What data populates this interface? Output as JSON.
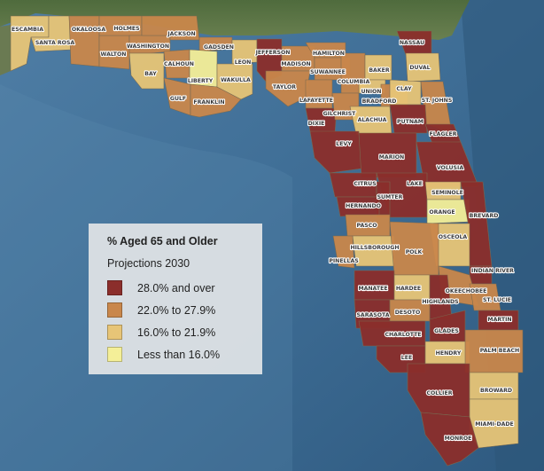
{
  "legend": {
    "title": "% Aged 65 and Older",
    "subtitle": "Projections 2030",
    "classes": [
      {
        "label": "28.0% and over",
        "color": "#8b2e2b"
      },
      {
        "label": "22.0% to 27.9%",
        "color": "#c9874b"
      },
      {
        "label": "16.0% to 21.9%",
        "color": "#e7c577"
      },
      {
        "label": "Less than 16.0%",
        "color": "#f4ef98"
      }
    ]
  },
  "counties": [
    {
      "name": "ESCAMBIA",
      "class": 3
    },
    {
      "name": "SANTA ROSA",
      "class": 3
    },
    {
      "name": "OKALOOSA",
      "class": 2
    },
    {
      "name": "WALTON",
      "class": 2
    },
    {
      "name": "HOLMES",
      "class": 2
    },
    {
      "name": "WASHINGTON",
      "class": 2
    },
    {
      "name": "JACKSON",
      "class": 2
    },
    {
      "name": "BAY",
      "class": 3
    },
    {
      "name": "CALHOUN",
      "class": 2
    },
    {
      "name": "GADSDEN",
      "class": 2
    },
    {
      "name": "LIBERTY",
      "class": 4
    },
    {
      "name": "GULF",
      "class": 2
    },
    {
      "name": "FRANKLIN",
      "class": 2
    },
    {
      "name": "LEON",
      "class": 3
    },
    {
      "name": "WAKULLA",
      "class": 3
    },
    {
      "name": "JEFFERSON",
      "class": 1
    },
    {
      "name": "MADISON",
      "class": 2
    },
    {
      "name": "TAYLOR",
      "class": 2
    },
    {
      "name": "HAMILTON",
      "class": 2
    },
    {
      "name": "SUWANNEE",
      "class": 2
    },
    {
      "name": "LAFAYETTE",
      "class": 2
    },
    {
      "name": "DIXIE",
      "class": 1
    },
    {
      "name": "COLUMBIA",
      "class": 2
    },
    {
      "name": "GILCHRIST",
      "class": 2
    },
    {
      "name": "BAKER",
      "class": 3
    },
    {
      "name": "UNION",
      "class": 3
    },
    {
      "name": "BRADFORD",
      "class": 2
    },
    {
      "name": "ALACHUA",
      "class": 3
    },
    {
      "name": "NASSAU",
      "class": 1
    },
    {
      "name": "DUVAL",
      "class": 3
    },
    {
      "name": "CLAY",
      "class": 3
    },
    {
      "name": "ST. JOHNS",
      "class": 2
    },
    {
      "name": "PUTNAM",
      "class": 1
    },
    {
      "name": "FLAGLER",
      "class": 1
    },
    {
      "name": "LEVY",
      "class": 1
    },
    {
      "name": "MARION",
      "class": 1
    },
    {
      "name": "VOLUSIA",
      "class": 1
    },
    {
      "name": "CITRUS",
      "class": 1
    },
    {
      "name": "LAKE",
      "class": 1
    },
    {
      "name": "SUMTER",
      "class": 1
    },
    {
      "name": "SEMINOLE",
      "class": 3
    },
    {
      "name": "HERNANDO",
      "class": 1
    },
    {
      "name": "ORANGE",
      "class": 4
    },
    {
      "name": "BREVARD",
      "class": 1
    },
    {
      "name": "PASCO",
      "class": 2
    },
    {
      "name": "HILLSBOROUGH",
      "class": 3
    },
    {
      "name": "OSCEOLA",
      "class": 3
    },
    {
      "name": "PINELLAS",
      "class": 2
    },
    {
      "name": "POLK",
      "class": 2
    },
    {
      "name": "INDIAN RIVER",
      "class": 1
    },
    {
      "name": "MANATEE",
      "class": 1
    },
    {
      "name": "HARDEE",
      "class": 3
    },
    {
      "name": "OKEECHOBEE",
      "class": 2
    },
    {
      "name": "ST. LUCIE",
      "class": 2
    },
    {
      "name": "HIGHLANDS",
      "class": 1
    },
    {
      "name": "SARASOTA",
      "class": 1
    },
    {
      "name": "DESOTO",
      "class": 2
    },
    {
      "name": "MARTIN",
      "class": 1
    },
    {
      "name": "CHARLOTTE",
      "class": 1
    },
    {
      "name": "GLADES",
      "class": 1
    },
    {
      "name": "LEE",
      "class": 1
    },
    {
      "name": "HENDRY",
      "class": 3
    },
    {
      "name": "PALM BEACH",
      "class": 2
    },
    {
      "name": "COLLIER",
      "class": 1
    },
    {
      "name": "BROWARD",
      "class": 3
    },
    {
      "name": "MIAMI-DADE",
      "class": 3
    },
    {
      "name": "MONROE",
      "class": 1
    }
  ]
}
